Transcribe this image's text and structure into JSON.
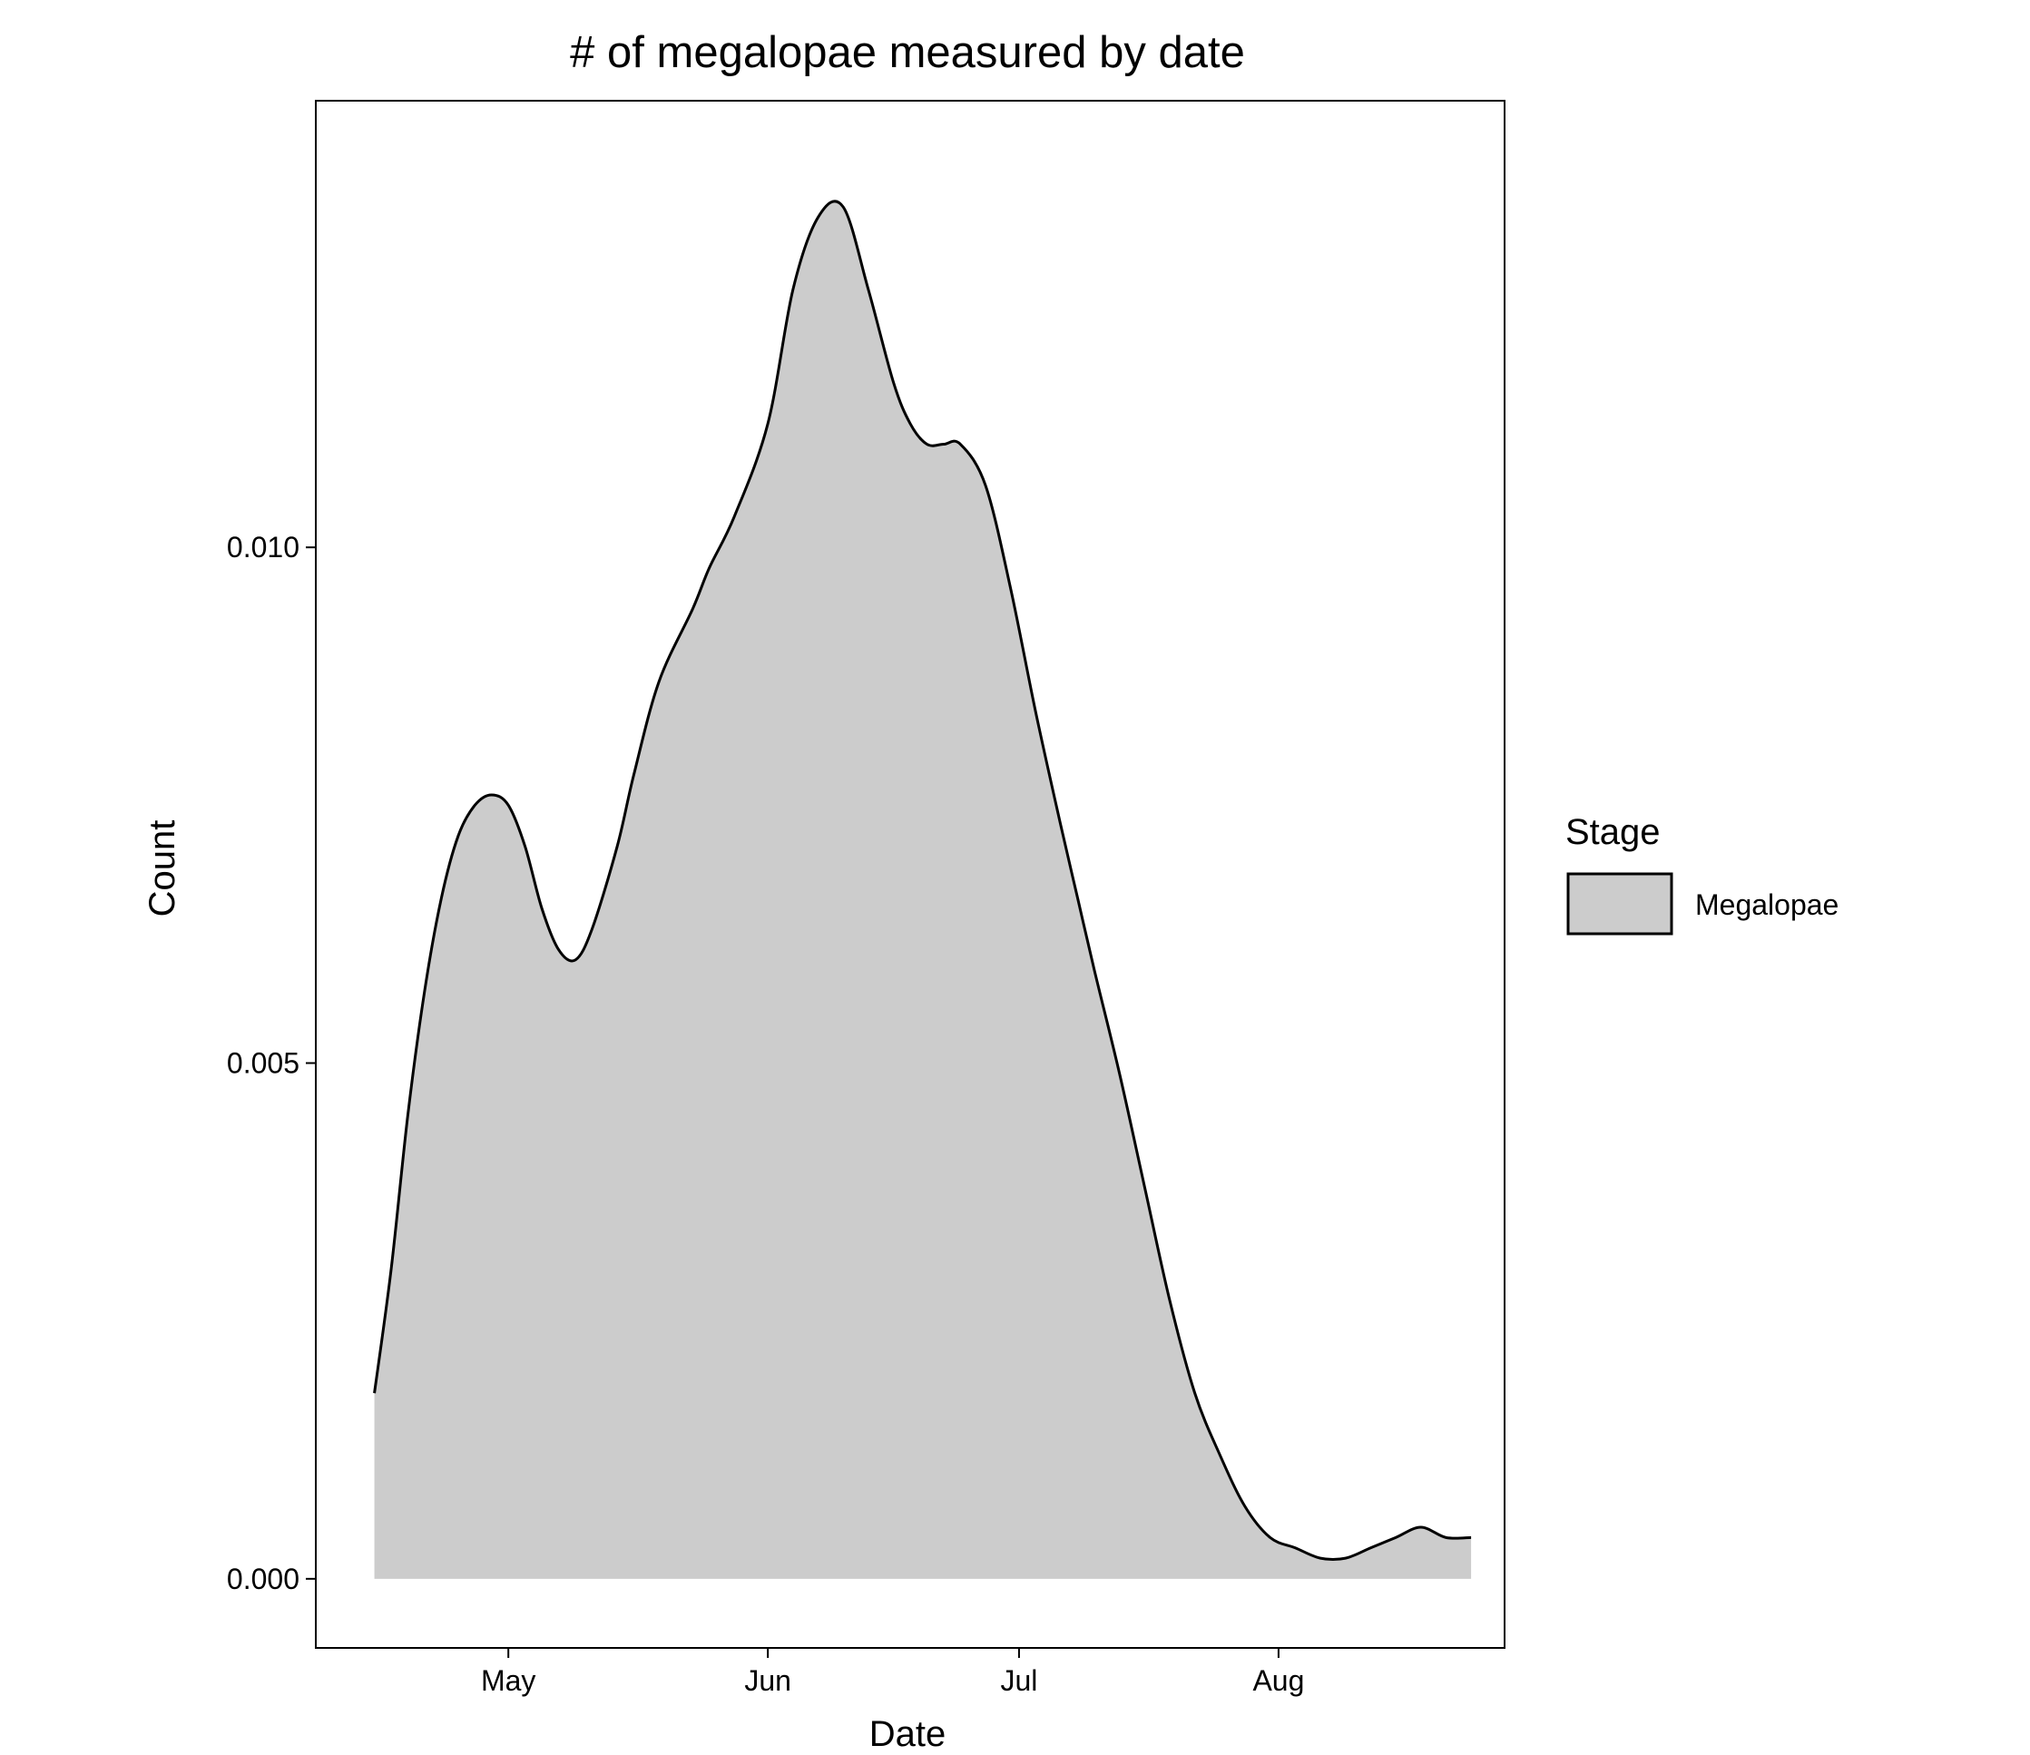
{
  "chart_data": {
    "type": "area",
    "title": "# of megalopae measured by date",
    "xlabel": "Date",
    "ylabel": "Count",
    "x_ticks": [
      "May",
      "Jun",
      "Jul",
      "Aug"
    ],
    "x_tick_dates": [
      "2018-05-01",
      "2018-06-01",
      "2018-07-01",
      "2018-08-01"
    ],
    "xlim": [
      "2018-04-08",
      "2018-08-28"
    ],
    "y_ticks": [
      "0.000",
      "0.005",
      "0.010"
    ],
    "y_tick_values": [
      0.0,
      0.005,
      0.01
    ],
    "ylim": [
      -0.00067,
      0.01433
    ],
    "grid": false,
    "legend": {
      "title": "Stage",
      "placement": "right",
      "entries": [
        "Megalopae"
      ]
    },
    "series": [
      {
        "name": "Megalopae",
        "color": "#cccccc",
        "x": [
          "2018-04-15",
          "2018-04-17",
          "2018-04-19",
          "2018-04-21",
          "2018-04-23",
          "2018-04-25",
          "2018-04-27",
          "2018-04-29",
          "2018-05-01",
          "2018-05-03",
          "2018-05-05",
          "2018-05-07",
          "2018-05-09",
          "2018-05-11",
          "2018-05-14",
          "2018-05-16",
          "2018-05-19",
          "2018-05-23",
          "2018-05-25",
          "2018-05-28",
          "2018-06-01",
          "2018-06-04",
          "2018-06-07",
          "2018-06-10",
          "2018-06-13",
          "2018-06-16",
          "2018-06-18",
          "2018-06-20",
          "2018-06-22",
          "2018-06-24",
          "2018-06-27",
          "2018-06-30",
          "2018-07-03",
          "2018-07-06",
          "2018-07-08",
          "2018-07-10",
          "2018-07-13",
          "2018-07-16",
          "2018-07-19",
          "2018-07-22",
          "2018-07-25",
          "2018-07-28",
          "2018-07-31",
          "2018-08-03",
          "2018-08-06",
          "2018-08-09",
          "2018-08-12",
          "2018-08-15",
          "2018-08-18",
          "2018-08-21",
          "2018-08-24"
        ],
        "values": [
          0.0018,
          0.003,
          0.0045,
          0.0057,
          0.0066,
          0.0072,
          0.0075,
          0.0076,
          0.0075,
          0.0071,
          0.0065,
          0.0061,
          0.006,
          0.0063,
          0.0071,
          0.0078,
          0.0087,
          0.0094,
          0.0098,
          0.0103,
          0.0112,
          0.0125,
          0.0132,
          0.0133,
          0.0125,
          0.0116,
          0.0112,
          0.011,
          0.011,
          0.011,
          0.0106,
          0.0096,
          0.0084,
          0.0073,
          0.0066,
          0.0059,
          0.0049,
          0.0038,
          0.0027,
          0.0018,
          0.0012,
          0.0007,
          0.0004,
          0.0003,
          0.0002,
          0.0002,
          0.0003,
          0.0004,
          0.0005,
          0.0004,
          0.0004
        ]
      }
    ]
  }
}
